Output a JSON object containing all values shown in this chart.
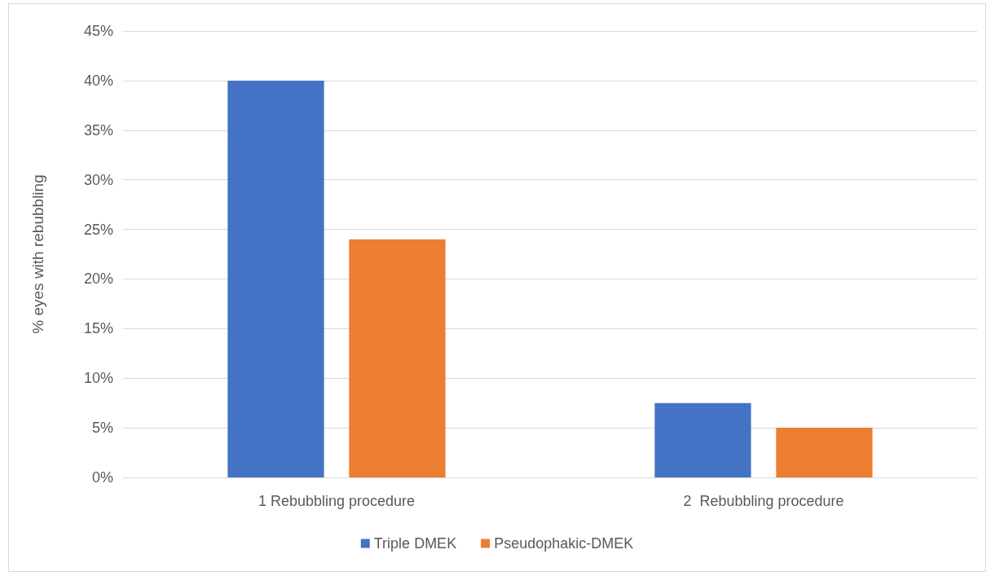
{
  "chart_data": {
    "type": "bar",
    "ylabel": "% eyes with rebubbling",
    "categories": [
      "1 Rebubbling procedure",
      "2  Rebubbling procedure"
    ],
    "series": [
      {
        "name": "Triple DMEK",
        "color": "#4472c4",
        "values": [
          40,
          7.5
        ]
      },
      {
        "name": "Pseudophakic-DMEK",
        "color": "#ed7d31",
        "values": [
          24,
          5
        ]
      }
    ],
    "ylim": [
      0,
      45
    ],
    "yticks": [
      {
        "value": 0,
        "label": "0%"
      },
      {
        "value": 5,
        "label": "5%"
      },
      {
        "value": 10,
        "label": "10%"
      },
      {
        "value": 15,
        "label": "15%"
      },
      {
        "value": 20,
        "label": "20%"
      },
      {
        "value": 25,
        "label": "25%"
      },
      {
        "value": 30,
        "label": "30%"
      },
      {
        "value": 35,
        "label": "35%"
      },
      {
        "value": 40,
        "label": "40%"
      },
      {
        "value": 45,
        "label": "45%"
      }
    ],
    "grid": "y",
    "legend": "bottom"
  }
}
